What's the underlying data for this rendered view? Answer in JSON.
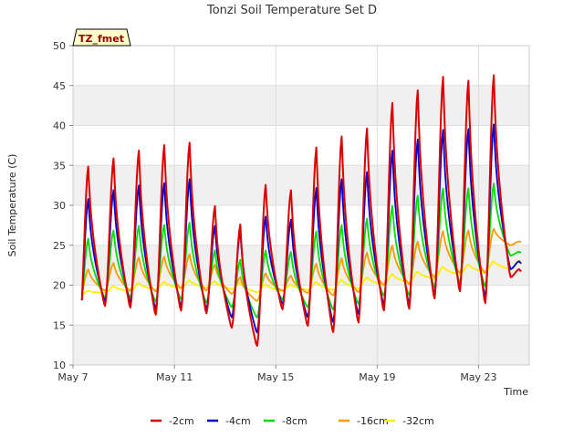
{
  "chart_data": {
    "type": "line",
    "title": "Tonzi Soil Temperature Set D",
    "xlabel": "Time",
    "ylabel": "Soil Temperature (C)",
    "badge": "TZ_fmet",
    "ylim": [
      10,
      50
    ],
    "xlim": [
      7.0,
      25.0
    ],
    "yticks": [
      10,
      15,
      20,
      25,
      30,
      35,
      40,
      45,
      50
    ],
    "xticks": [
      {
        "value": 7,
        "label": "May 7"
      },
      {
        "value": 11,
        "label": "May 11"
      },
      {
        "value": 15,
        "label": "May 15"
      },
      {
        "value": 19,
        "label": "May 19"
      },
      {
        "value": 23,
        "label": "May 23"
      }
    ],
    "grid": true,
    "legend_position": "bottom",
    "days": [
      7,
      8,
      9,
      10,
      11,
      12,
      13,
      14,
      15,
      16,
      17,
      18,
      19,
      20,
      21,
      22,
      23,
      24
    ],
    "series": [
      {
        "name": "-2cm",
        "color": "#dd0000",
        "width": 2.0,
        "max": [
          35,
          36,
          37,
          37.7,
          38,
          30,
          27.7,
          32.7,
          32,
          37.4,
          38.8,
          39.8,
          43,
          44.6,
          46.3,
          45.8,
          46.5,
          22
        ],
        "min": [
          14.7,
          17.3,
          17.1,
          16.2,
          16.7,
          16.4,
          14.6,
          12.3,
          16.9,
          14.8,
          14,
          15.2,
          16.7,
          16.9,
          18.2,
          19.1,
          17.6,
          21
        ]
      },
      {
        "name": "-4cm",
        "color": "#0000cc",
        "width": 1.8,
        "max": [
          30.9,
          32,
          32.6,
          32.9,
          33.4,
          27.5,
          26.8,
          28.7,
          28.3,
          32.3,
          33.4,
          34.3,
          37,
          38.4,
          39.6,
          39.7,
          40.3,
          23
        ],
        "min": [
          15.5,
          17.9,
          17.8,
          17,
          17.3,
          17,
          15.9,
          14,
          17.6,
          15.9,
          15.3,
          16.3,
          17.5,
          17.6,
          18.8,
          19.6,
          18.5,
          22
        ]
      },
      {
        "name": "-8cm",
        "color": "#00dd00",
        "width": 1.8,
        "max": [
          25.9,
          26.9,
          27.5,
          27.6,
          27.9,
          24.4,
          23.2,
          24.4,
          24.2,
          26.8,
          27.6,
          28.4,
          30,
          31.3,
          32.2,
          32.2,
          32.8,
          24.2
        ],
        "min": [
          16.5,
          18.4,
          18.4,
          17.9,
          18.2,
          17.8,
          17.2,
          15.9,
          18.2,
          17.2,
          16.9,
          17.6,
          18.6,
          18.7,
          19.7,
          20.3,
          19.8,
          23.7
        ]
      },
      {
        "name": "-16cm",
        "color": "#ff9900",
        "width": 1.8,
        "max": [
          22,
          22.8,
          23.5,
          23.6,
          23.9,
          22.6,
          21,
          21.5,
          21.2,
          22.7,
          23.4,
          24.1,
          25,
          25.5,
          26.8,
          26.9,
          27.1,
          25.5
        ],
        "min": [
          18.3,
          19.3,
          19.3,
          19.2,
          19.6,
          19.3,
          18.9,
          18,
          19.3,
          19,
          18.7,
          19.1,
          20,
          20.1,
          21,
          21.5,
          21.5,
          25
        ]
      },
      {
        "name": "-32cm",
        "color": "#ffee00",
        "width": 1.8,
        "max": [
          19.3,
          19.9,
          20.3,
          20.4,
          20.6,
          20.5,
          20.3,
          20.1,
          20.1,
          20.4,
          20.7,
          21,
          21.4,
          21.7,
          22.3,
          22.6,
          23,
          23.1
        ],
        "min": [
          18.6,
          19,
          19.2,
          19.4,
          19.6,
          19.7,
          19.5,
          19.1,
          19.3,
          19.4,
          19.4,
          19.6,
          20,
          20.3,
          20.8,
          21.3,
          21.6,
          22
        ]
      }
    ]
  }
}
